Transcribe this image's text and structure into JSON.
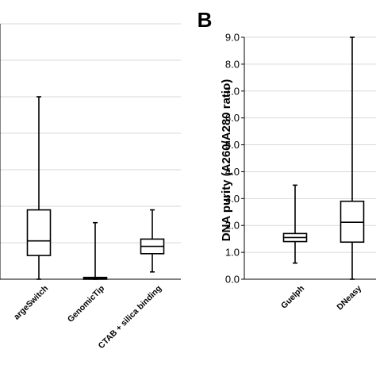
{
  "chart_data": [
    {
      "type": "box",
      "panel_label": "",
      "categories": [
        "argeSwitch",
        "GenomicTip",
        "CTAB + silica binding"
      ],
      "series": [
        {
          "category": "argeSwitch",
          "min": 0.0,
          "q1": 0.65,
          "median": 1.05,
          "q3": 1.9,
          "max": 5.0
        },
        {
          "category": "GenomicTip",
          "min": 0.0,
          "q1": 0.0,
          "median": 0.02,
          "q3": 0.05,
          "max": 1.55
        },
        {
          "category": "CTAB + silica binding",
          "min": 0.2,
          "q1": 0.7,
          "median": 0.9,
          "q3": 1.1,
          "max": 1.9
        }
      ],
      "ylim": [
        0,
        7
      ],
      "grid_step": 1,
      "grid": true
    },
    {
      "type": "box",
      "panel_label": "B",
      "ylabel": "DNA purity (A260/A280 ratio)",
      "categories": [
        "Guelph",
        "DNeasy"
      ],
      "series": [
        {
          "category": "Guelph",
          "min": 0.6,
          "q1": 1.4,
          "median": 1.55,
          "q3": 1.7,
          "max": 3.5
        },
        {
          "category": "DNeasy",
          "min": 0.0,
          "q1": 1.38,
          "median": 2.12,
          "q3": 2.9,
          "max": 9.0
        }
      ],
      "ylim": [
        0,
        9
      ],
      "yticks": [
        "0.0",
        "1.0",
        "2.0",
        "3.0",
        "4.0",
        "5.0",
        "6.0",
        "7.0",
        "8.0",
        "9.0"
      ],
      "grid": true
    }
  ]
}
